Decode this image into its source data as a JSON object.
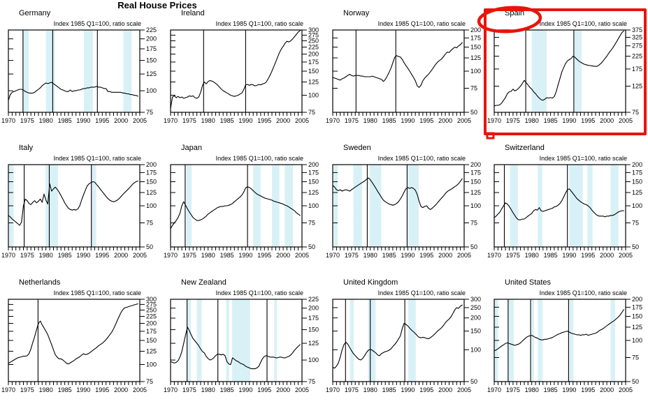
{
  "page": {
    "title": "Real House Prices",
    "index_label": "Index 1985 Q1=100, ratio scale"
  },
  "colors": {
    "line": "#000000",
    "recession_band": "#d8f1f7",
    "annotation_red": "#e8150b"
  },
  "annotation": {
    "highlighted_country": "Spain",
    "shape": "hand-drawn red ellipse around country label and red rectangle around panel",
    "color": "#e8150b"
  },
  "chart_defaults": {
    "type": "line",
    "y_scale": "log",
    "x_range": [
      1970,
      2005
    ],
    "x_ticks": [
      1970,
      1975,
      1980,
      1985,
      1990,
      1995,
      2000,
      2005
    ],
    "series_start": 1970,
    "series_step": 0.5
  },
  "chart_data": [
    {
      "country": "Germany",
      "y_ticks": [
        75,
        100,
        125,
        150,
        175,
        200,
        225
      ],
      "vlines": [
        1973.9,
        1981.8,
        1993.7
      ],
      "recession_bands": [
        [
          1973.9,
          1975.4
        ],
        [
          1980,
          1982.4
        ],
        [
          1990.1,
          1992.5
        ],
        [
          2000.6,
          2002.8
        ]
      ],
      "series": [
        88,
        95,
        98,
        99,
        100,
        101,
        102,
        102,
        101,
        99,
        98,
        97,
        97,
        97,
        98,
        100,
        102,
        104,
        107,
        109,
        111,
        110,
        111,
        112,
        110,
        108,
        106,
        104,
        102,
        101,
        100,
        99,
        99,
        101,
        99,
        100,
        100,
        101,
        101,
        102,
        103,
        103,
        104,
        104,
        105,
        105,
        105,
        106,
        105,
        105,
        104,
        103,
        103,
        99,
        99,
        98,
        98,
        98,
        98,
        98,
        98,
        97,
        97,
        96,
        96,
        95,
        95,
        94,
        94,
        93
      ]
    },
    {
      "country": "Ireland",
      "y_ticks": [
        75,
        100,
        125,
        150,
        175,
        200,
        225,
        250,
        275,
        300
      ],
      "vlines": [
        1978.8,
        1990
      ],
      "recession_bands": [],
      "series": [
        80,
        97,
        99,
        96,
        98,
        96,
        97,
        95,
        96,
        97,
        99,
        98,
        99,
        96,
        95,
        97,
        105,
        118,
        125,
        121,
        126,
        128,
        127,
        125,
        122,
        119,
        115,
        111,
        108,
        106,
        104,
        102,
        100,
        99,
        98,
        99,
        100,
        102,
        104,
        110,
        119,
        120,
        118,
        120,
        119,
        117,
        118,
        120,
        119,
        121,
        122,
        125,
        132,
        140,
        150,
        162,
        175,
        190,
        205,
        218,
        228,
        240,
        248,
        245,
        250,
        258,
        268,
        278,
        290,
        297
      ]
    },
    {
      "country": "Norway",
      "y_ticks": [
        50,
        75,
        100,
        125,
        150,
        175,
        200
      ],
      "vlines": [
        1976.2,
        1986.8
      ],
      "recession_bands": [],
      "series": [
        90,
        89,
        88,
        87,
        86,
        88,
        89,
        91,
        93,
        95,
        93,
        92,
        93,
        93,
        93,
        92,
        92,
        91,
        91,
        91,
        91,
        92,
        91,
        90,
        89,
        88,
        87,
        84,
        87,
        92,
        98,
        105,
        115,
        126,
        130,
        128,
        127,
        122,
        115,
        110,
        105,
        100,
        95,
        90,
        85,
        78,
        76,
        79,
        85,
        89,
        92,
        95,
        99,
        103,
        108,
        113,
        117,
        120,
        123,
        128,
        133,
        138,
        137,
        142,
        146,
        150,
        148,
        153,
        156,
        162
      ]
    },
    {
      "country": "Spain",
      "y_ticks": [
        75,
        125,
        175,
        225,
        275,
        325,
        375
      ],
      "vlines": [
        1978.4,
        1991.2
      ],
      "recession_bands": [
        [
          1980,
          1984
        ],
        [
          1991.4,
          1993.3
        ]
      ],
      "series": [
        85,
        86,
        86,
        87,
        90,
        95,
        100,
        108,
        112,
        113,
        118,
        114,
        116,
        120,
        125,
        132,
        140,
        134,
        128,
        122,
        118,
        112,
        108,
        103,
        99,
        96,
        95,
        97,
        100,
        99,
        100,
        99,
        102,
        112,
        128,
        145,
        165,
        180,
        195,
        205,
        210,
        215,
        225,
        220,
        212,
        205,
        200,
        196,
        192,
        190,
        188,
        187,
        186,
        185,
        184,
        185,
        190,
        196,
        205,
        215,
        225,
        238,
        250,
        262,
        278,
        295,
        315,
        335,
        355,
        368
      ]
    },
    {
      "country": "Italy",
      "y_ticks": [
        50,
        75,
        100,
        125,
        150,
        175,
        200
      ],
      "vlines": [
        1974.2,
        1980.9,
        1992.1
      ],
      "recession_bands": [
        [
          1970.2,
          1971.4
        ],
        [
          1979.9,
          1983.2
        ],
        [
          1992.2,
          1993.4
        ]
      ],
      "series": [
        85,
        83,
        80,
        78,
        76,
        74,
        72,
        76,
        100,
        112,
        109,
        104,
        102,
        106,
        109,
        105,
        108,
        112,
        106,
        122,
        110,
        103,
        145,
        128,
        133,
        137,
        132,
        126,
        119,
        112,
        105,
        100,
        96,
        94,
        93,
        94,
        93,
        95,
        100,
        110,
        120,
        130,
        140,
        145,
        148,
        150,
        149,
        143,
        138,
        132,
        127,
        122,
        117,
        113,
        110,
        108,
        107,
        108,
        110,
        113,
        117,
        121,
        125,
        129,
        133,
        138,
        143,
        147,
        150,
        152
      ]
    },
    {
      "country": "Japan",
      "y_ticks": [
        50,
        75,
        100,
        125,
        150,
        175,
        200
      ],
      "vlines": [
        1973.9,
        1990.5
      ],
      "recession_bands": [
        [
          1974.2,
          1975.6
        ],
        [
          1992,
          1994
        ],
        [
          1997,
          1999
        ],
        [
          2000.4,
          2002.6
        ]
      ],
      "series": [
        68,
        72,
        75,
        78,
        82,
        88,
        100,
        107,
        101,
        95,
        90,
        86,
        82,
        80,
        78,
        78,
        79,
        80,
        82,
        84,
        87,
        89,
        91,
        93,
        95,
        97,
        98,
        99,
        99,
        100,
        100,
        101,
        102,
        104,
        107,
        110,
        113,
        116,
        120,
        126,
        135,
        138,
        136,
        133,
        129,
        125,
        122,
        120,
        118,
        116,
        114,
        113,
        112,
        111,
        110,
        108,
        107,
        106,
        105,
        104,
        103,
        101,
        100,
        98,
        96,
        94,
        92,
        89,
        87,
        85
      ]
    },
    {
      "country": "Sweden",
      "y_ticks": [
        50,
        75,
        100,
        125,
        150,
        175,
        200
      ],
      "vlines": [
        1979.2,
        1989.8
      ],
      "recession_bands": [
        [
          1970.3,
          1971.3
        ],
        [
          1975.5,
          1977.8
        ],
        [
          1979.8,
          1982.9
        ],
        [
          1990,
          1992.9
        ]
      ],
      "series": [
        141,
        137,
        131,
        129,
        131,
        128,
        130,
        131,
        130,
        128,
        131,
        134,
        137,
        140,
        143,
        146,
        149,
        152,
        156,
        160,
        155,
        148,
        141,
        134,
        127,
        121,
        115,
        110,
        107,
        105,
        103,
        102,
        101,
        102,
        104,
        107,
        112,
        118,
        126,
        133,
        136,
        134,
        136,
        134,
        130,
        121,
        108,
        99,
        97,
        99,
        100,
        96,
        94,
        96,
        99,
        102,
        106,
        110,
        114,
        118,
        123,
        127,
        130,
        132,
        135,
        138,
        141,
        145,
        151,
        158
      ]
    },
    {
      "country": "Switzerland",
      "y_ticks": [
        50,
        75,
        100,
        125,
        150,
        175,
        200
      ],
      "vlines": [
        1972.7,
        1989.5
      ],
      "recession_bands": [
        [
          1974.2,
          1976.3
        ],
        [
          1981.6,
          1982.8
        ],
        [
          1990,
          1993.6
        ],
        [
          1994.8,
          1996.2
        ],
        [
          2001,
          2003.1
        ]
      ],
      "series": [
        82,
        84,
        87,
        90,
        95,
        100,
        105,
        103,
        99,
        94,
        89,
        85,
        81,
        79,
        79,
        80,
        80,
        82,
        84,
        86,
        88,
        92,
        94,
        93,
        97,
        92,
        91,
        92,
        93,
        94,
        95,
        96,
        98,
        99,
        101,
        104,
        109,
        116,
        124,
        131,
        133,
        128,
        123,
        118,
        113,
        110,
        107,
        105,
        103,
        102,
        100,
        97,
        93,
        90,
        87,
        85,
        84,
        84,
        84,
        83,
        84,
        84,
        85,
        85,
        86,
        88,
        90,
        91,
        92,
        92
      ]
    },
    {
      "country": "Netherlands",
      "y_ticks": [
        75,
        100,
        125,
        150,
        175,
        200,
        225,
        250,
        275,
        300
      ],
      "vlines": [
        1977.9
      ],
      "recession_bands": [],
      "series": [
        102,
        104,
        106,
        108,
        110,
        112,
        113,
        114,
        115,
        115,
        116,
        120,
        130,
        145,
        160,
        180,
        200,
        208,
        195,
        185,
        175,
        165,
        152,
        140,
        128,
        118,
        113,
        110,
        110,
        108,
        105,
        102,
        101,
        103,
        105,
        107,
        110,
        112,
        114,
        117,
        120,
        118,
        119,
        121,
        124,
        127,
        130,
        133,
        137,
        140,
        143,
        147,
        152,
        158,
        165,
        172,
        182,
        195,
        210,
        225,
        240,
        252,
        260,
        262,
        265,
        268,
        270,
        273,
        275,
        278
      ]
    },
    {
      "country": "New Zealand",
      "y_ticks": [
        75,
        100,
        125,
        150,
        175,
        200,
        225
      ],
      "vlines": [
        1974.4,
        1982.6,
        1995.7
      ],
      "recession_bands": [
        [
          1974.5,
          1975.4
        ],
        [
          1977,
          1978.3
        ],
        [
          1984.8,
          1985.6
        ],
        [
          1986.4,
          1991.2
        ],
        [
          1997.6,
          1998.3
        ]
      ],
      "series": [
        98,
        97,
        96,
        97,
        99,
        104,
        112,
        125,
        140,
        155,
        148,
        140,
        133,
        129,
        125,
        121,
        116,
        112,
        110,
        105,
        102,
        100,
        101,
        103,
        106,
        108,
        108,
        107,
        108,
        106,
        98,
        95,
        94,
        103,
        101,
        99,
        98,
        96,
        95,
        94,
        92,
        91,
        90,
        89,
        89,
        89,
        90,
        92,
        97,
        102,
        105,
        106,
        105,
        104,
        104,
        104,
        103,
        103,
        104,
        104,
        103,
        103,
        104,
        105,
        107,
        110,
        114,
        117,
        120,
        123
      ]
    },
    {
      "country": "United Kingdom",
      "y_ticks": [
        50,
        100,
        150,
        200,
        250,
        300
      ],
      "vlines": [
        1973.4,
        1980,
        1989.2
      ],
      "recession_bands": [
        [
          1974.6,
          1975.6
        ],
        [
          1979.4,
          1981.4
        ],
        [
          1990.1,
          1992.1
        ]
      ],
      "series": [
        68,
        67,
        70,
        75,
        85,
        100,
        112,
        118,
        113,
        105,
        98,
        92,
        88,
        84,
        81,
        80,
        83,
        88,
        94,
        99,
        101,
        99,
        96,
        93,
        89,
        88,
        92,
        94,
        96,
        97,
        99,
        102,
        107,
        112,
        118,
        126,
        135,
        158,
        178,
        174,
        168,
        160,
        153,
        148,
        142,
        136,
        131,
        130,
        131,
        130,
        128,
        127,
        130,
        134,
        139,
        145,
        151,
        156,
        162,
        170,
        180,
        188,
        195,
        205,
        220,
        238,
        250,
        246,
        258,
        265
      ]
    },
    {
      "country": "United States",
      "y_ticks": [
        50,
        75,
        100,
        125,
        150,
        175,
        200
      ],
      "vlines": [
        1973.7,
        1979.7,
        1989.8
      ],
      "recession_bands": [
        [
          1970,
          1971
        ],
        [
          1973.8,
          1975.2
        ],
        [
          1980,
          1980.6
        ],
        [
          1981.6,
          1982.9
        ],
        [
          1990,
          1991.1
        ],
        [
          2001,
          2002.2
        ]
      ],
      "series": [
        84,
        85,
        87,
        89,
        91,
        93,
        95,
        96,
        95,
        94,
        93,
        92,
        93,
        94,
        96,
        99,
        102,
        105,
        107,
        108,
        109,
        107,
        105,
        104,
        102,
        101,
        101,
        102,
        102,
        103,
        104,
        105,
        107,
        109,
        111,
        112,
        114,
        115,
        116,
        117,
        115,
        113,
        112,
        111,
        110,
        110,
        109,
        110,
        110,
        111,
        109,
        110,
        111,
        112,
        113,
        115,
        118,
        120,
        122,
        125,
        128,
        131,
        134,
        137,
        140,
        144,
        148,
        153,
        160,
        168
      ]
    }
  ]
}
